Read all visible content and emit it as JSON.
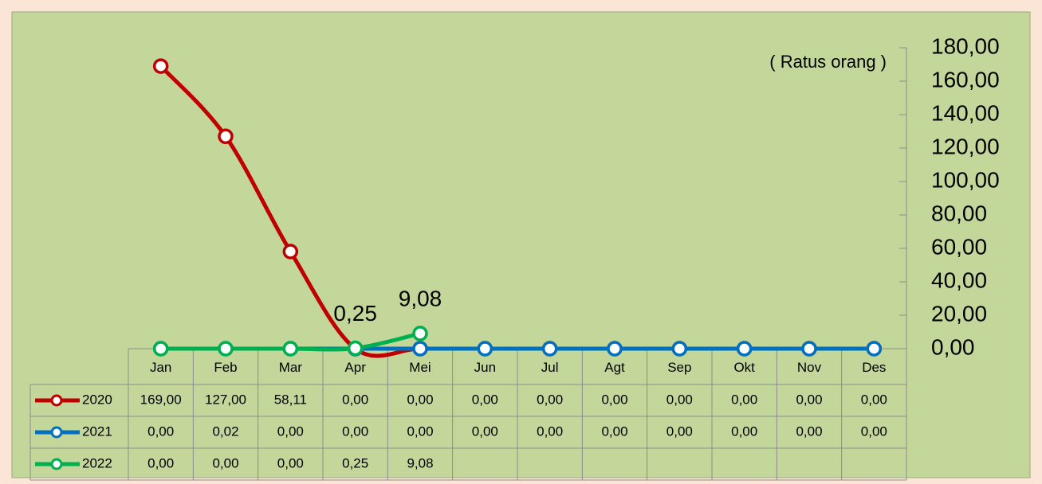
{
  "chart_data": {
    "type": "line",
    "axis_label": "( Ratus orang )",
    "categories": [
      "Jan",
      "Feb",
      "Mar",
      "Apr",
      "Mei",
      "Jun",
      "Jul",
      "Agt",
      "Sep",
      "Okt",
      "Nov",
      "Des"
    ],
    "series": [
      {
        "name": "2020",
        "color": "#c00000",
        "values": [
          169,
          127,
          58.11,
          0,
          0,
          0,
          0,
          0,
          0,
          0,
          0,
          0
        ],
        "value_labels": [
          "169,00",
          "127,00",
          "58,11",
          "0,00",
          "0,00",
          "0,00",
          "0,00",
          "0,00",
          "0,00",
          "0,00",
          "0,00",
          "0,00"
        ]
      },
      {
        "name": "2021",
        "color": "#0070c0",
        "values": [
          0,
          0.02,
          0,
          0,
          0,
          0,
          0,
          0,
          0,
          0,
          0,
          0
        ],
        "value_labels": [
          "0,00",
          "0,02",
          "0,00",
          "0,00",
          "0,00",
          "0,00",
          "0,00",
          "0,00",
          "0,00",
          "0,00",
          "0,00",
          "0,00"
        ]
      },
      {
        "name": "2022",
        "color": "#00b050",
        "data_labels": true,
        "values": [
          0,
          0,
          0,
          0.25,
          9.08,
          null,
          null,
          null,
          null,
          null,
          null,
          null
        ],
        "value_labels": [
          "0,00",
          "0,00",
          "0,00",
          "0,25",
          "9,08",
          null,
          null,
          null,
          null,
          null,
          null,
          null
        ]
      }
    ],
    "ylim": [
      0,
      180
    ],
    "yticks": [
      {
        "value": 0,
        "label": "0,00"
      },
      {
        "value": 20,
        "label": "20,00"
      },
      {
        "value": 40,
        "label": "40,00"
      },
      {
        "value": 60,
        "label": "60,00"
      },
      {
        "value": 80,
        "label": "80,00"
      },
      {
        "value": 100,
        "label": "100,00"
      },
      {
        "value": 120,
        "label": "120,00"
      },
      {
        "value": 140,
        "label": "140,00"
      },
      {
        "value": 160,
        "label": "160,00"
      },
      {
        "value": 180,
        "label": "180,00"
      }
    ],
    "data_table": true
  }
}
